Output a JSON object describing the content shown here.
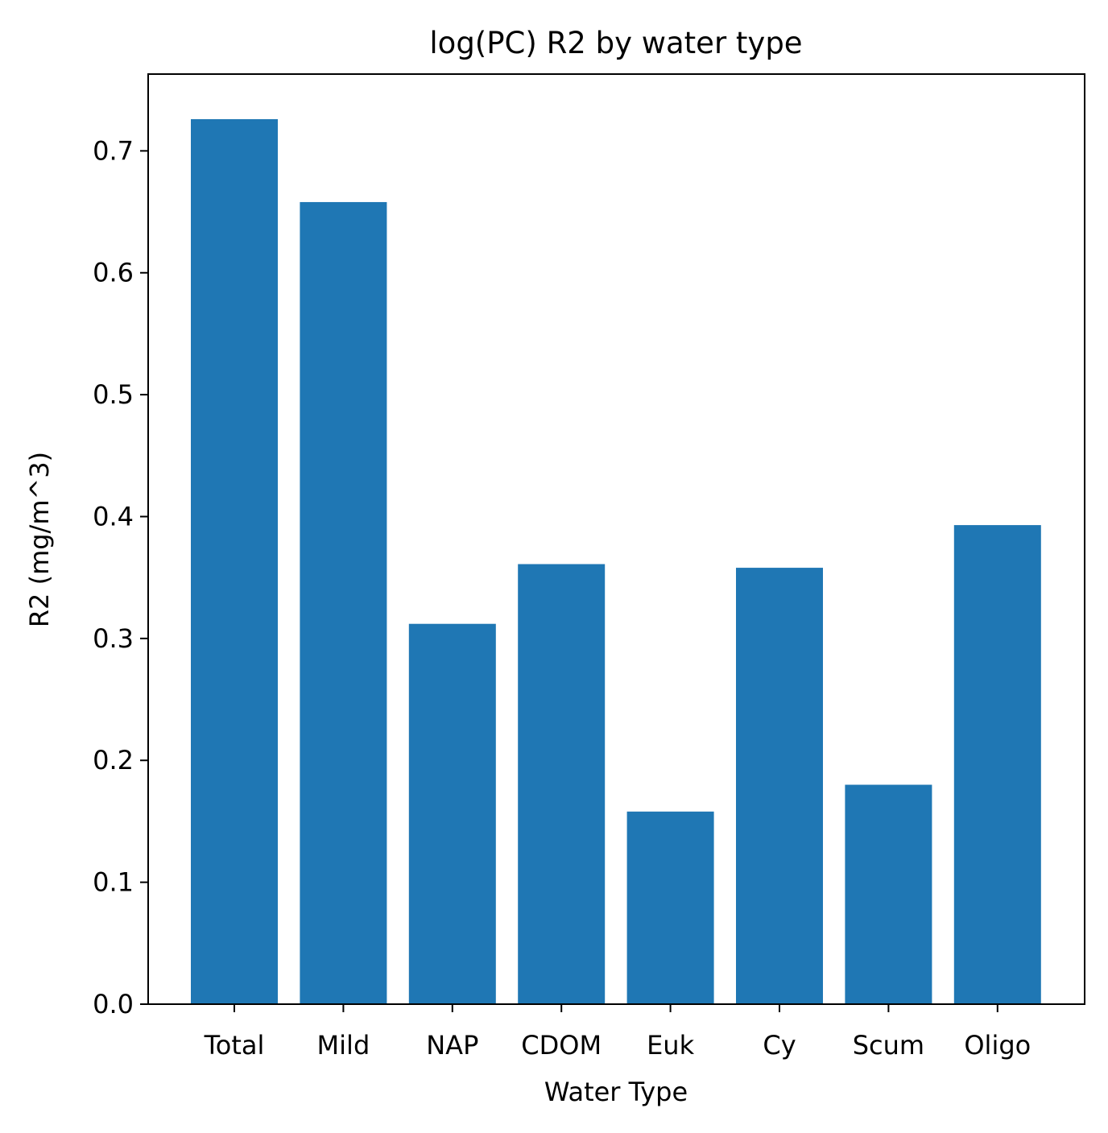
{
  "chart_data": {
    "type": "bar",
    "title": "log(PC) R2 by water type",
    "xlabel": "Water Type",
    "ylabel": "R2 (mg/m^3)",
    "categories": [
      "Total",
      "Mild",
      "NAP",
      "CDOM",
      "Euk",
      "Cy",
      "Scum",
      "Oligo"
    ],
    "values": [
      0.726,
      0.658,
      0.312,
      0.361,
      0.158,
      0.358,
      0.18,
      0.393
    ],
    "ylim": [
      0,
      0.763
    ],
    "yticks": [
      "0.0",
      "0.1",
      "0.2",
      "0.3",
      "0.4",
      "0.5",
      "0.6",
      "0.7"
    ],
    "grid": false,
    "legend": "none",
    "colors": {
      "bar": "#1f77b4",
      "axis": "#000000",
      "background": "#ffffff"
    }
  }
}
